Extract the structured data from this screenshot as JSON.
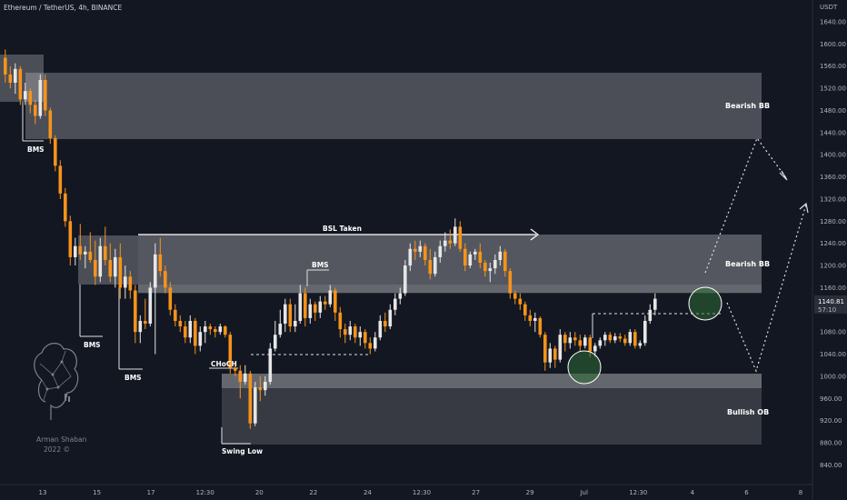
{
  "header": {
    "symbol": "Ethereum / TetherUS, 4h, BINANCE"
  },
  "price_axis": {
    "currency": "USDT",
    "last_price": "1140.81",
    "countdown": "57:10"
  },
  "colors": {
    "background": "#131722",
    "candle_up": "#e6e6e6",
    "candle_down": "#f7931a",
    "zone_fill": "#e0e0e0",
    "highlight_circle": "#2e6b35",
    "axis_text": "#b2b5be"
  },
  "watermark": {
    "name": "Arman Shaban",
    "year": "2022 ©",
    "icon": "brain-icon"
  },
  "chart_data": {
    "type": "candlestick",
    "ylim": [
      820,
      1660
    ],
    "y_ticks": [
      840,
      880,
      920,
      960,
      1000,
      1040,
      1080,
      1120,
      1160,
      1200,
      1240,
      1280,
      1320,
      1360,
      1400,
      1440,
      1480,
      1520,
      1560,
      1600,
      1640
    ],
    "x_tick_labels": [
      "13",
      "15",
      "17",
      "12:30",
      "20",
      "22",
      "24",
      "12:30",
      "27",
      "29",
      "Jul",
      "12:30",
      "4",
      "6",
      "8"
    ],
    "zones": [
      {
        "label": "Bearish BB",
        "low": 1428,
        "high": 1545
      },
      {
        "label": "Bearish BB",
        "low": 1155,
        "high": 1265
      },
      {
        "label": "Bullish OB",
        "low": 887,
        "high": 1012
      }
    ],
    "annotations": [
      {
        "text": "BMS",
        "price": 1415
      },
      {
        "text": "BMS",
        "price": 1080
      },
      {
        "text": "BMS",
        "price": 1015
      },
      {
        "text": "BMS",
        "price": 1195
      },
      {
        "text": "CHoCH",
        "price": 1020
      },
      {
        "text": "Swing Low",
        "price": 880
      },
      {
        "text": "BSL Taken",
        "price": 1262
      }
    ],
    "candles": [
      {
        "o": 1575,
        "h": 1590,
        "l": 1530,
        "c": 1545
      },
      {
        "o": 1545,
        "h": 1560,
        "l": 1520,
        "c": 1530
      },
      {
        "o": 1530,
        "h": 1565,
        "l": 1510,
        "c": 1555
      },
      {
        "o": 1555,
        "h": 1560,
        "l": 1490,
        "c": 1500
      },
      {
        "o": 1500,
        "h": 1530,
        "l": 1490,
        "c": 1515
      },
      {
        "o": 1515,
        "h": 1520,
        "l": 1475,
        "c": 1490
      },
      {
        "o": 1490,
        "h": 1500,
        "l": 1455,
        "c": 1470
      },
      {
        "o": 1470,
        "h": 1545,
        "l": 1465,
        "c": 1535
      },
      {
        "o": 1535,
        "h": 1545,
        "l": 1470,
        "c": 1480
      },
      {
        "o": 1480,
        "h": 1485,
        "l": 1420,
        "c": 1430
      },
      {
        "o": 1430,
        "h": 1435,
        "l": 1370,
        "c": 1380
      },
      {
        "o": 1380,
        "h": 1390,
        "l": 1320,
        "c": 1330
      },
      {
        "o": 1330,
        "h": 1340,
        "l": 1270,
        "c": 1280
      },
      {
        "o": 1280,
        "h": 1290,
        "l": 1200,
        "c": 1215
      },
      {
        "o": 1215,
        "h": 1250,
        "l": 1200,
        "c": 1235
      },
      {
        "o": 1235,
        "h": 1275,
        "l": 1210,
        "c": 1220
      },
      {
        "o": 1220,
        "h": 1235,
        "l": 1195,
        "c": 1225
      },
      {
        "o": 1225,
        "h": 1260,
        "l": 1205,
        "c": 1210
      },
      {
        "o": 1210,
        "h": 1245,
        "l": 1165,
        "c": 1180
      },
      {
        "o": 1180,
        "h": 1250,
        "l": 1170,
        "c": 1235
      },
      {
        "o": 1235,
        "h": 1270,
        "l": 1200,
        "c": 1210
      },
      {
        "o": 1210,
        "h": 1240,
        "l": 1170,
        "c": 1180
      },
      {
        "o": 1180,
        "h": 1230,
        "l": 1160,
        "c": 1215
      },
      {
        "o": 1215,
        "h": 1240,
        "l": 1140,
        "c": 1160
      },
      {
        "o": 1160,
        "h": 1200,
        "l": 1140,
        "c": 1180
      },
      {
        "o": 1180,
        "h": 1190,
        "l": 1140,
        "c": 1155
      },
      {
        "o": 1155,
        "h": 1165,
        "l": 1060,
        "c": 1080
      },
      {
        "o": 1080,
        "h": 1110,
        "l": 1060,
        "c": 1100
      },
      {
        "o": 1100,
        "h": 1140,
        "l": 1085,
        "c": 1095
      },
      {
        "o": 1095,
        "h": 1170,
        "l": 1090,
        "c": 1160
      },
      {
        "o": 1160,
        "h": 1240,
        "l": 1040,
        "c": 1220
      },
      {
        "o": 1220,
        "h": 1250,
        "l": 1180,
        "c": 1190
      },
      {
        "o": 1190,
        "h": 1200,
        "l": 1150,
        "c": 1160
      },
      {
        "o": 1160,
        "h": 1170,
        "l": 1110,
        "c": 1120
      },
      {
        "o": 1120,
        "h": 1130,
        "l": 1090,
        "c": 1100
      },
      {
        "o": 1100,
        "h": 1110,
        "l": 1080,
        "c": 1090
      },
      {
        "o": 1090,
        "h": 1100,
        "l": 1060,
        "c": 1070
      },
      {
        "o": 1070,
        "h": 1110,
        "l": 1060,
        "c": 1100
      },
      {
        "o": 1100,
        "h": 1105,
        "l": 1040,
        "c": 1055
      },
      {
        "o": 1055,
        "h": 1090,
        "l": 1045,
        "c": 1080
      },
      {
        "o": 1080,
        "h": 1100,
        "l": 1060,
        "c": 1090
      },
      {
        "o": 1090,
        "h": 1095,
        "l": 1075,
        "c": 1085
      },
      {
        "o": 1085,
        "h": 1090,
        "l": 1070,
        "c": 1080
      },
      {
        "o": 1080,
        "h": 1095,
        "l": 1075,
        "c": 1090
      },
      {
        "o": 1090,
        "h": 1092,
        "l": 1070,
        "c": 1075
      },
      {
        "o": 1075,
        "h": 1080,
        "l": 1005,
        "c": 1015
      },
      {
        "o": 1015,
        "h": 1020,
        "l": 1000,
        "c": 1010
      },
      {
        "o": 1010,
        "h": 1020,
        "l": 960,
        "c": 990
      },
      {
        "o": 990,
        "h": 1020,
        "l": 985,
        "c": 1005
      },
      {
        "o": 1005,
        "h": 1010,
        "l": 905,
        "c": 915
      },
      {
        "o": 915,
        "h": 990,
        "l": 910,
        "c": 980
      },
      {
        "o": 980,
        "h": 1000,
        "l": 955,
        "c": 975
      },
      {
        "o": 975,
        "h": 1000,
        "l": 965,
        "c": 990
      },
      {
        "o": 990,
        "h": 1060,
        "l": 985,
        "c": 1050
      },
      {
        "o": 1050,
        "h": 1100,
        "l": 1045,
        "c": 1075
      },
      {
        "o": 1075,
        "h": 1120,
        "l": 1070,
        "c": 1095
      },
      {
        "o": 1095,
        "h": 1140,
        "l": 1080,
        "c": 1130
      },
      {
        "o": 1130,
        "h": 1140,
        "l": 1080,
        "c": 1090
      },
      {
        "o": 1090,
        "h": 1130,
        "l": 1080,
        "c": 1100
      },
      {
        "o": 1100,
        "h": 1165,
        "l": 1095,
        "c": 1150
      },
      {
        "o": 1150,
        "h": 1160,
        "l": 1090,
        "c": 1105
      },
      {
        "o": 1105,
        "h": 1140,
        "l": 1095,
        "c": 1130
      },
      {
        "o": 1130,
        "h": 1135,
        "l": 1100,
        "c": 1115
      },
      {
        "o": 1115,
        "h": 1145,
        "l": 1105,
        "c": 1135
      },
      {
        "o": 1135,
        "h": 1145,
        "l": 1120,
        "c": 1130
      },
      {
        "o": 1130,
        "h": 1165,
        "l": 1125,
        "c": 1155
      },
      {
        "o": 1155,
        "h": 1160,
        "l": 1100,
        "c": 1115
      },
      {
        "o": 1115,
        "h": 1125,
        "l": 1070,
        "c": 1085
      },
      {
        "o": 1085,
        "h": 1095,
        "l": 1060,
        "c": 1075
      },
      {
        "o": 1075,
        "h": 1100,
        "l": 1065,
        "c": 1090
      },
      {
        "o": 1090,
        "h": 1095,
        "l": 1060,
        "c": 1070
      },
      {
        "o": 1070,
        "h": 1090,
        "l": 1055,
        "c": 1080
      },
      {
        "o": 1080,
        "h": 1085,
        "l": 1050,
        "c": 1060
      },
      {
        "o": 1060,
        "h": 1070,
        "l": 1040,
        "c": 1050
      },
      {
        "o": 1050,
        "h": 1080,
        "l": 1045,
        "c": 1070
      },
      {
        "o": 1070,
        "h": 1110,
        "l": 1065,
        "c": 1100
      },
      {
        "o": 1100,
        "h": 1115,
        "l": 1080,
        "c": 1090
      },
      {
        "o": 1090,
        "h": 1130,
        "l": 1085,
        "c": 1120
      },
      {
        "o": 1120,
        "h": 1150,
        "l": 1110,
        "c": 1140
      },
      {
        "o": 1140,
        "h": 1160,
        "l": 1130,
        "c": 1150
      },
      {
        "o": 1150,
        "h": 1210,
        "l": 1145,
        "c": 1200
      },
      {
        "o": 1200,
        "h": 1240,
        "l": 1190,
        "c": 1230
      },
      {
        "o": 1230,
        "h": 1245,
        "l": 1210,
        "c": 1225
      },
      {
        "o": 1225,
        "h": 1245,
        "l": 1215,
        "c": 1235
      },
      {
        "o": 1235,
        "h": 1240,
        "l": 1200,
        "c": 1210
      },
      {
        "o": 1210,
        "h": 1230,
        "l": 1175,
        "c": 1185
      },
      {
        "o": 1185,
        "h": 1225,
        "l": 1180,
        "c": 1215
      },
      {
        "o": 1215,
        "h": 1245,
        "l": 1205,
        "c": 1235
      },
      {
        "o": 1235,
        "h": 1260,
        "l": 1225,
        "c": 1245
      },
      {
        "o": 1245,
        "h": 1265,
        "l": 1230,
        "c": 1240
      },
      {
        "o": 1240,
        "h": 1285,
        "l": 1235,
        "c": 1270
      },
      {
        "o": 1270,
        "h": 1280,
        "l": 1225,
        "c": 1230
      },
      {
        "o": 1230,
        "h": 1240,
        "l": 1190,
        "c": 1200
      },
      {
        "o": 1200,
        "h": 1225,
        "l": 1195,
        "c": 1220
      },
      {
        "o": 1220,
        "h": 1230,
        "l": 1210,
        "c": 1225
      },
      {
        "o": 1225,
        "h": 1240,
        "l": 1195,
        "c": 1205
      },
      {
        "o": 1205,
        "h": 1210,
        "l": 1180,
        "c": 1190
      },
      {
        "o": 1190,
        "h": 1205,
        "l": 1170,
        "c": 1195
      },
      {
        "o": 1195,
        "h": 1220,
        "l": 1185,
        "c": 1210
      },
      {
        "o": 1210,
        "h": 1235,
        "l": 1200,
        "c": 1225
      },
      {
        "o": 1225,
        "h": 1230,
        "l": 1180,
        "c": 1190
      },
      {
        "o": 1190,
        "h": 1195,
        "l": 1140,
        "c": 1150
      },
      {
        "o": 1150,
        "h": 1155,
        "l": 1130,
        "c": 1140
      },
      {
        "o": 1140,
        "h": 1150,
        "l": 1120,
        "c": 1130
      },
      {
        "o": 1130,
        "h": 1135,
        "l": 1100,
        "c": 1110
      },
      {
        "o": 1110,
        "h": 1120,
        "l": 1090,
        "c": 1100
      },
      {
        "o": 1100,
        "h": 1115,
        "l": 1080,
        "c": 1105
      },
      {
        "o": 1105,
        "h": 1108,
        "l": 1070,
        "c": 1075
      },
      {
        "o": 1075,
        "h": 1080,
        "l": 1010,
        "c": 1025
      },
      {
        "o": 1025,
        "h": 1060,
        "l": 1015,
        "c": 1050
      },
      {
        "o": 1050,
        "h": 1055,
        "l": 1015,
        "c": 1030
      },
      {
        "o": 1030,
        "h": 1085,
        "l": 1025,
        "c": 1075
      },
      {
        "o": 1075,
        "h": 1080,
        "l": 1045,
        "c": 1060
      },
      {
        "o": 1060,
        "h": 1080,
        "l": 1050,
        "c": 1070
      },
      {
        "o": 1070,
        "h": 1080,
        "l": 1055,
        "c": 1065
      },
      {
        "o": 1065,
        "h": 1075,
        "l": 1045,
        "c": 1055
      },
      {
        "o": 1055,
        "h": 1075,
        "l": 1050,
        "c": 1070
      },
      {
        "o": 1070,
        "h": 1075,
        "l": 1035,
        "c": 1045
      },
      {
        "o": 1045,
        "h": 1060,
        "l": 1035,
        "c": 1055
      },
      {
        "o": 1055,
        "h": 1070,
        "l": 1050,
        "c": 1065
      },
      {
        "o": 1065,
        "h": 1080,
        "l": 1055,
        "c": 1075
      },
      {
        "o": 1075,
        "h": 1080,
        "l": 1060,
        "c": 1065
      },
      {
        "o": 1065,
        "h": 1078,
        "l": 1060,
        "c": 1072
      },
      {
        "o": 1072,
        "h": 1078,
        "l": 1062,
        "c": 1068
      },
      {
        "o": 1068,
        "h": 1075,
        "l": 1055,
        "c": 1060
      },
      {
        "o": 1060,
        "h": 1085,
        "l": 1055,
        "c": 1080
      },
      {
        "o": 1080,
        "h": 1085,
        "l": 1050,
        "c": 1055
      },
      {
        "o": 1055,
        "h": 1065,
        "l": 1050,
        "c": 1060
      },
      {
        "o": 1060,
        "h": 1110,
        "l": 1055,
        "c": 1100
      },
      {
        "o": 1100,
        "h": 1130,
        "l": 1095,
        "c": 1120
      },
      {
        "o": 1120,
        "h": 1150,
        "l": 1110,
        "c": 1140
      }
    ]
  }
}
